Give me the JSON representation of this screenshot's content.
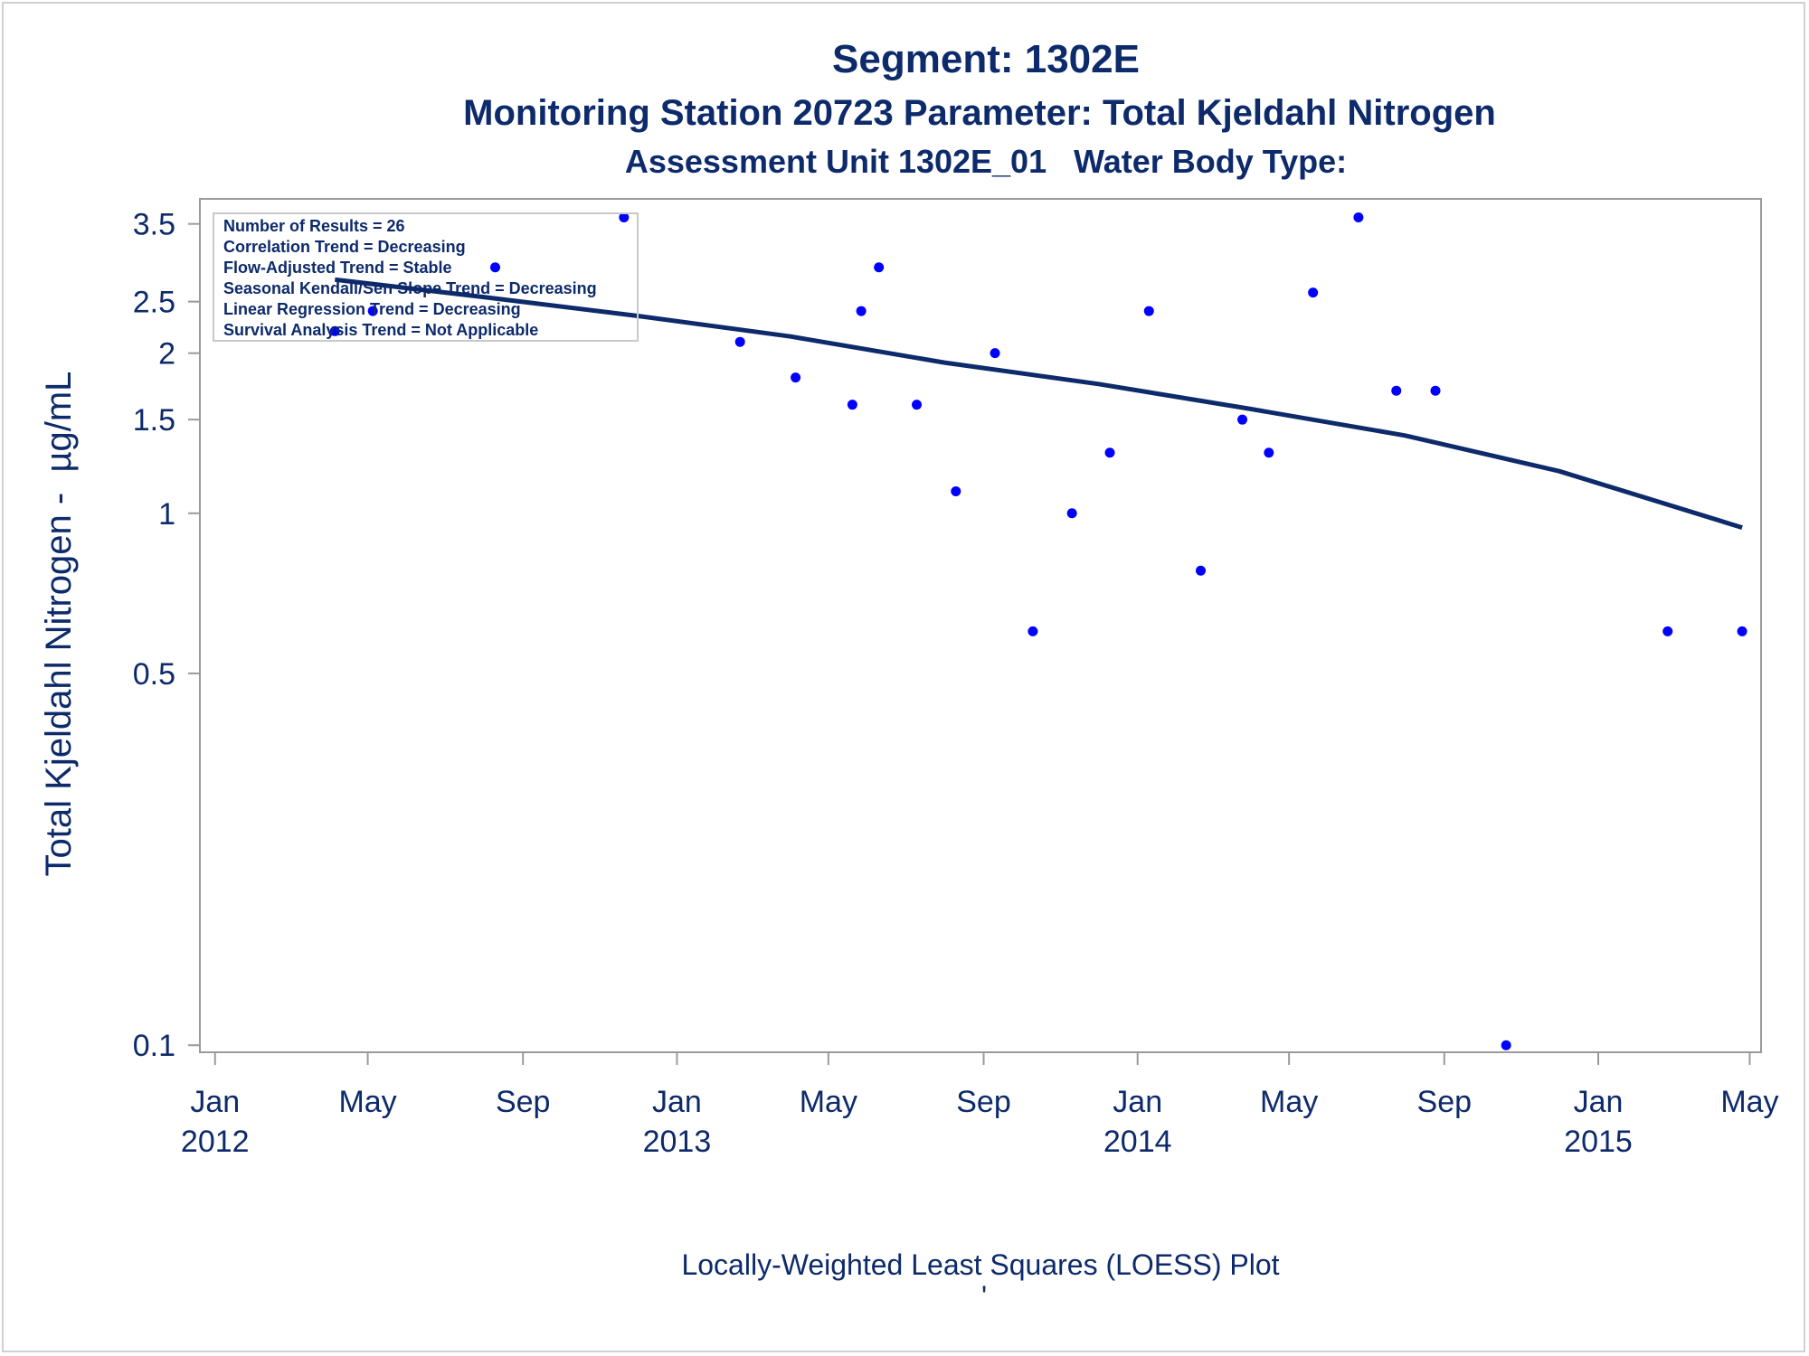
{
  "chart_data": {
    "type": "scatter",
    "title": "Segment: 1302E",
    "subtitle": "Monitoring Station 20723 Parameter: Total Kjeldahl Nitrogen",
    "subtitle2": "Assessment Unit 1302E_01   Water Body Type:",
    "ylabel": "Total Kjeldahl Nitrogen -  µg/mL",
    "footnote": "Locally-Weighted Least Squares (LOESS) Plot",
    "footnote2": "'",
    "y_scale": "log",
    "ylim": [
      0.097,
      3.9
    ],
    "xlim": [
      "2011-12-20",
      "2015-05-10"
    ],
    "grid": false,
    "y_ticks": [
      {
        "value": 0.1,
        "label": "0.1"
      },
      {
        "value": 0.5,
        "label": "0.5"
      },
      {
        "value": 1,
        "label": "1"
      },
      {
        "value": 1.5,
        "label": "1.5"
      },
      {
        "value": 2,
        "label": "2"
      },
      {
        "value": 2.5,
        "label": "2.5"
      },
      {
        "value": 3.5,
        "label": "3.5"
      }
    ],
    "x_ticks": [
      {
        "date": "2012-01-01",
        "label": "Jan",
        "year": "2012"
      },
      {
        "date": "2012-05-01",
        "label": "May",
        "year": ""
      },
      {
        "date": "2012-09-01",
        "label": "Sep",
        "year": ""
      },
      {
        "date": "2013-01-01",
        "label": "Jan",
        "year": "2013"
      },
      {
        "date": "2013-05-01",
        "label": "May",
        "year": ""
      },
      {
        "date": "2013-09-01",
        "label": "Sep",
        "year": ""
      },
      {
        "date": "2014-01-01",
        "label": "Jan",
        "year": "2014"
      },
      {
        "date": "2014-05-01",
        "label": "May",
        "year": ""
      },
      {
        "date": "2014-09-01",
        "label": "Sep",
        "year": ""
      },
      {
        "date": "2015-01-01",
        "label": "Jan",
        "year": "2015"
      },
      {
        "date": "2015-05-01",
        "label": "May",
        "year": ""
      }
    ],
    "stats_box": [
      "Number of Results = 26",
      "Correlation Trend = Decreasing",
      "Flow-Adjusted Trend = Stable",
      "Seasonal Kendall/Sen Slope Trend = Decreasing",
      "Linear Regression Trend = Decreasing",
      "Survival Analysis Trend = Not Applicable"
    ],
    "series": [
      {
        "type": "scatter",
        "color": "#0000ff",
        "points": [
          {
            "x": "2012-04-05",
            "y": 2.2
          },
          {
            "x": "2012-05-05",
            "y": 2.4
          },
          {
            "x": "2012-08-10",
            "y": 2.9
          },
          {
            "x": "2012-11-20",
            "y": 3.6
          },
          {
            "x": "2013-02-20",
            "y": 2.1
          },
          {
            "x": "2013-04-05",
            "y": 1.8
          },
          {
            "x": "2013-05-20",
            "y": 1.6
          },
          {
            "x": "2013-05-27",
            "y": 2.4
          },
          {
            "x": "2013-06-10",
            "y": 2.9
          },
          {
            "x": "2013-07-10",
            "y": 1.6
          },
          {
            "x": "2013-08-10",
            "y": 1.1
          },
          {
            "x": "2013-09-10",
            "y": 2.0
          },
          {
            "x": "2013-10-10",
            "y": 0.6
          },
          {
            "x": "2013-11-10",
            "y": 1.0
          },
          {
            "x": "2013-12-10",
            "y": 1.3
          },
          {
            "x": "2014-01-10",
            "y": 2.4
          },
          {
            "x": "2014-02-20",
            "y": 0.78
          },
          {
            "x": "2014-03-25",
            "y": 1.5
          },
          {
            "x": "2014-04-15",
            "y": 1.3
          },
          {
            "x": "2014-05-20",
            "y": 2.6
          },
          {
            "x": "2014-06-25",
            "y": 3.6
          },
          {
            "x": "2014-07-25",
            "y": 1.7
          },
          {
            "x": "2014-08-25",
            "y": 1.7
          },
          {
            "x": "2014-10-20",
            "y": 0.1
          },
          {
            "x": "2015-02-25",
            "y": 0.6
          },
          {
            "x": "2015-04-25",
            "y": 0.6
          }
        ]
      },
      {
        "type": "line",
        "color": "#0d2a6b",
        "points": [
          {
            "x": "2012-04-05",
            "y": 2.75
          },
          {
            "x": "2012-08-01",
            "y": 2.55
          },
          {
            "x": "2012-12-01",
            "y": 2.35
          },
          {
            "x": "2013-04-01",
            "y": 2.15
          },
          {
            "x": "2013-08-01",
            "y": 1.92
          },
          {
            "x": "2013-12-01",
            "y": 1.75
          },
          {
            "x": "2014-04-01",
            "y": 1.57
          },
          {
            "x": "2014-08-01",
            "y": 1.4
          },
          {
            "x": "2014-12-01",
            "y": 1.2
          },
          {
            "x": "2015-04-25",
            "y": 0.94
          }
        ]
      }
    ]
  }
}
